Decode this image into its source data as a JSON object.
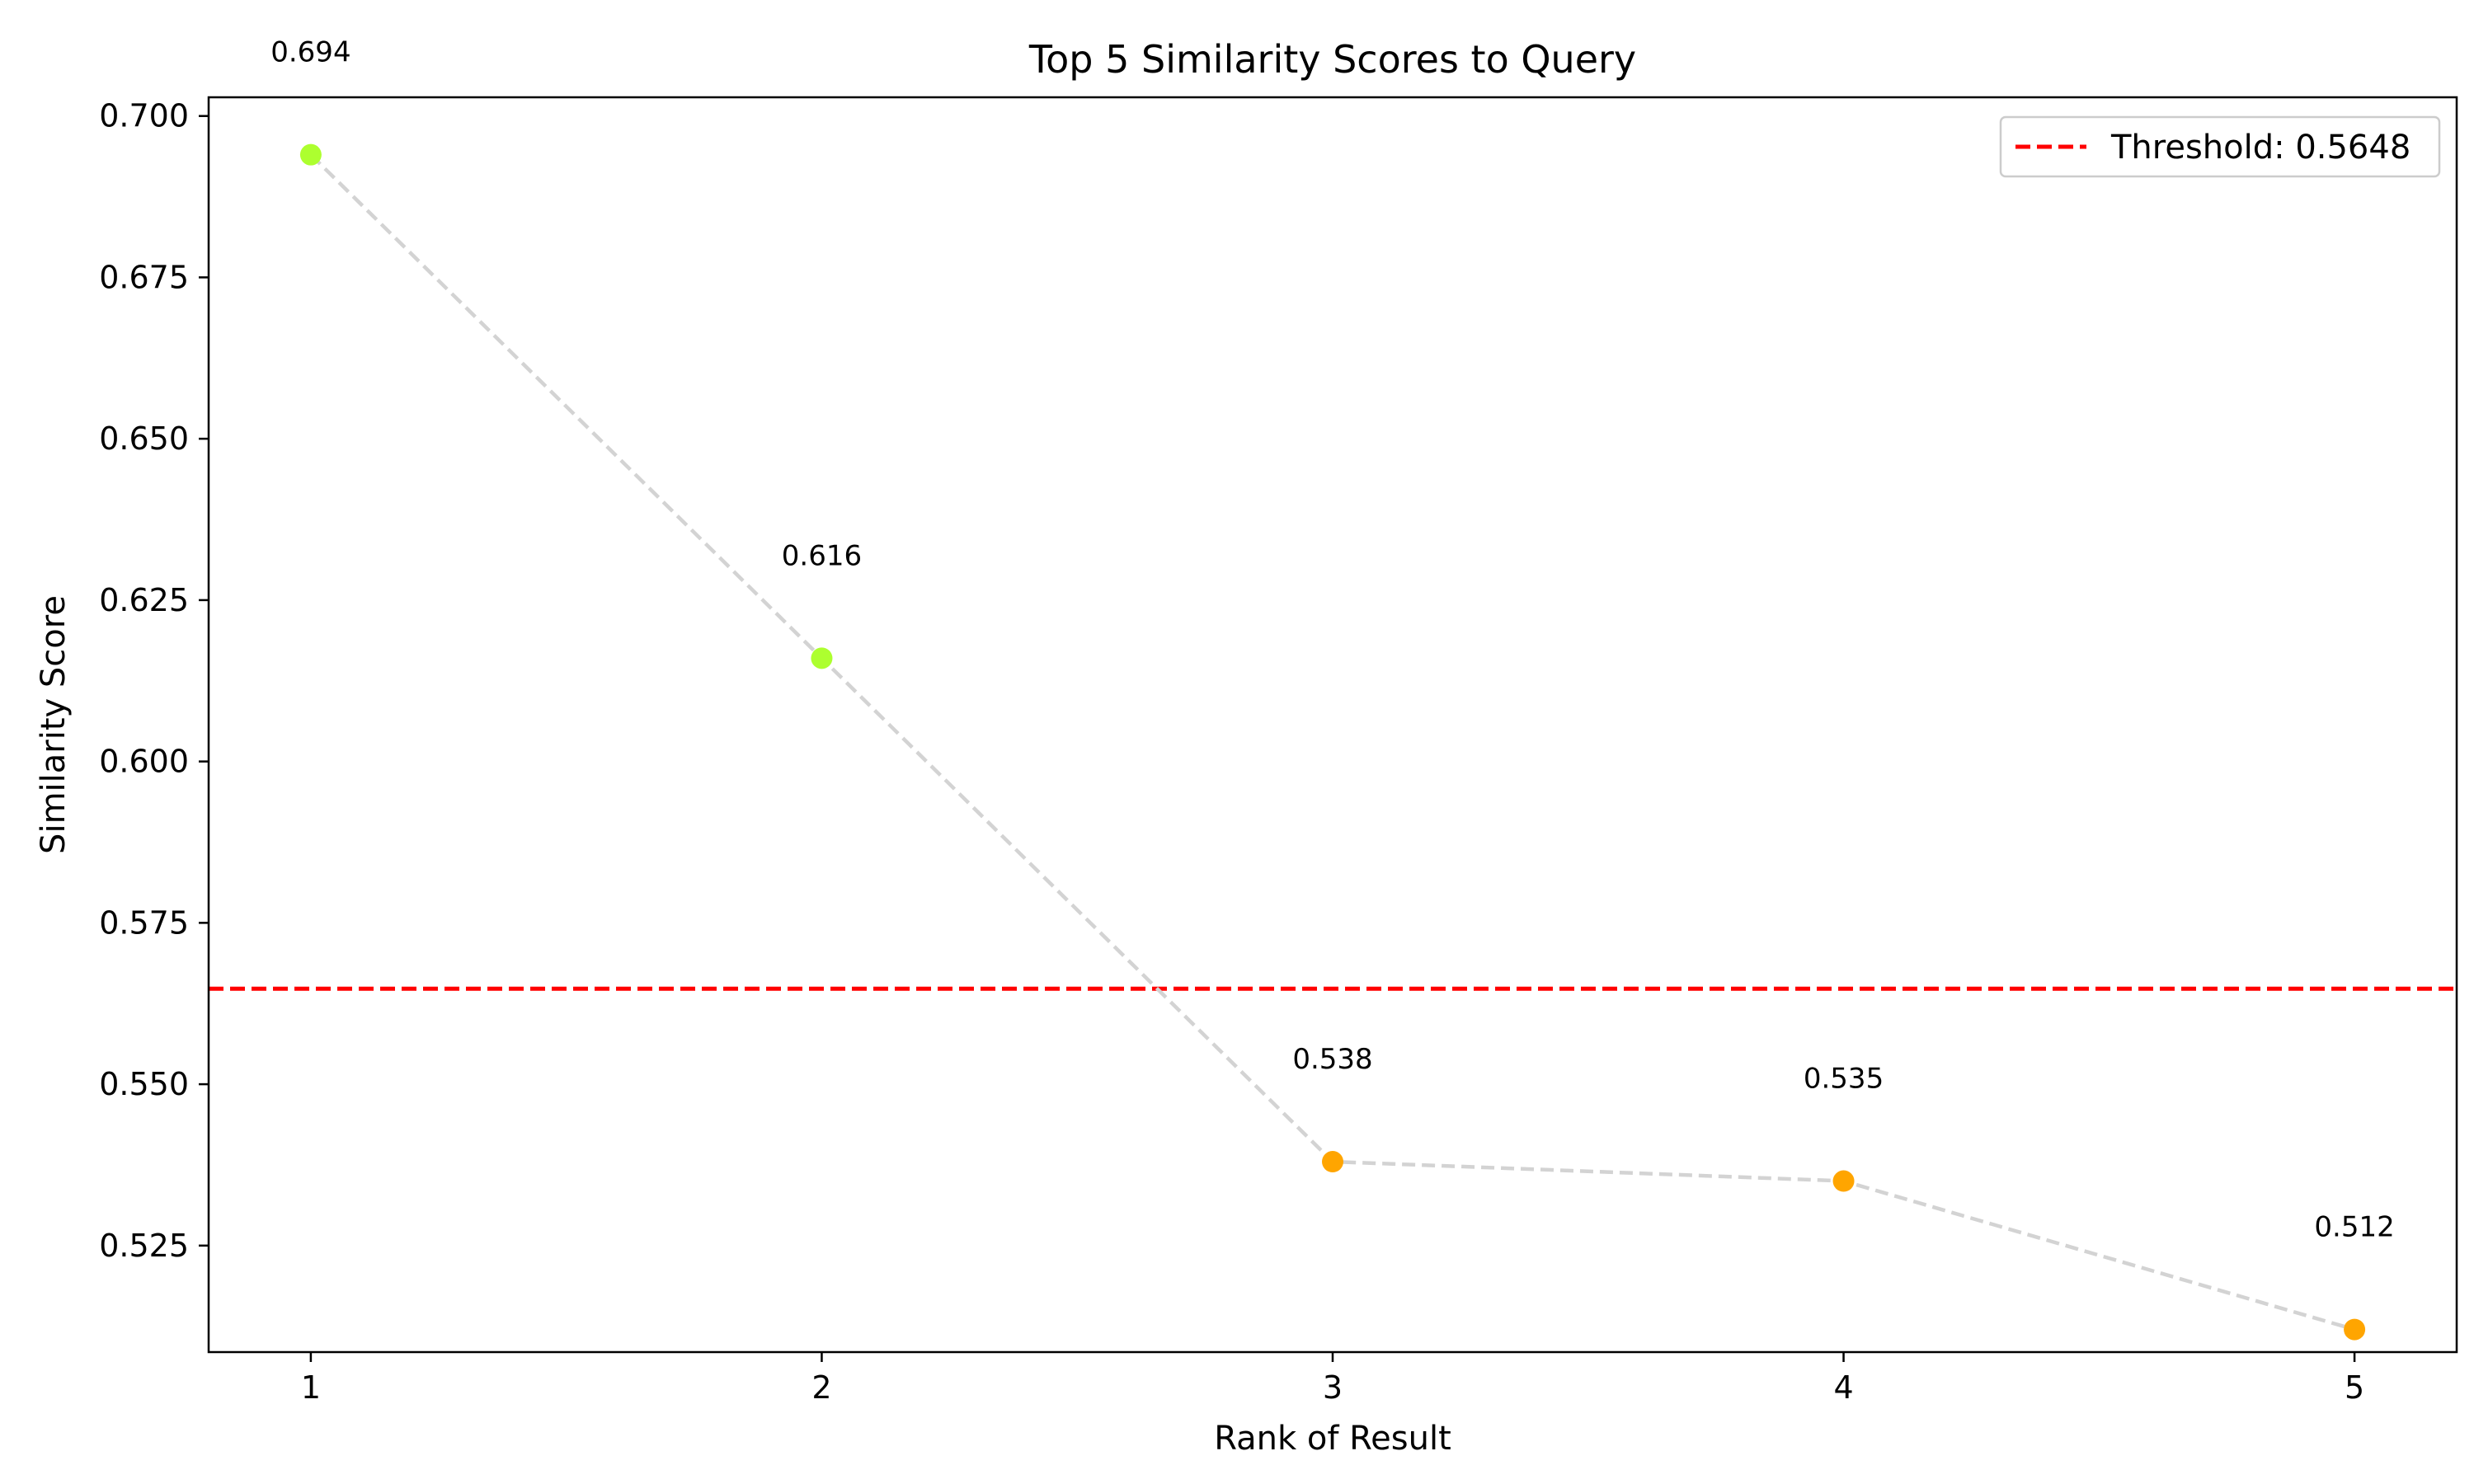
{
  "chart_data": {
    "type": "line",
    "title": "Top 5 Similarity Scores to Query",
    "xlabel": "Rank of Result",
    "ylabel": "Similarity Score",
    "x": [
      1,
      2,
      3,
      4,
      5
    ],
    "y": [
      0.694,
      0.616,
      0.538,
      0.535,
      0.512
    ],
    "data_labels": [
      "0.694",
      "0.616",
      "0.538",
      "0.535",
      "0.512"
    ],
    "point_colors": [
      "#adff2f",
      "#adff2f",
      "#ffa500",
      "#ffa500",
      "#ffa500"
    ],
    "line_color": "#d3d3d3",
    "line_style": "dashed",
    "xlim": [
      0.8,
      5.2
    ],
    "ylim": [
      0.5085,
      0.7029
    ],
    "xticks": [
      1,
      2,
      3,
      4,
      5
    ],
    "xtick_labels": [
      "1",
      "2",
      "3",
      "4",
      "5"
    ],
    "yticks": [
      0.525,
      0.55,
      0.575,
      0.6,
      0.625,
      0.65,
      0.675,
      0.7
    ],
    "ytick_labels": [
      "0.525",
      "0.550",
      "0.575",
      "0.600",
      "0.625",
      "0.650",
      "0.675",
      "0.700"
    ],
    "threshold": {
      "value": 0.5648,
      "label": "Threshold: 0.5648",
      "color": "#ff0000",
      "line_style": "dashed"
    },
    "legend_position": "top-right",
    "grid": false
  }
}
